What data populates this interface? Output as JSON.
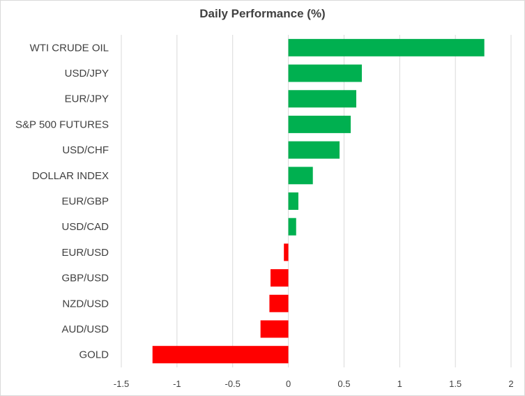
{
  "chart_data": {
    "type": "bar",
    "orientation": "horizontal",
    "title": "Daily Performance  (%)",
    "xlabel": "",
    "ylabel": "",
    "xlim": [
      -1.5,
      2
    ],
    "xticks": [
      "-1.5",
      "-1",
      "-0.5",
      "0",
      "0.5",
      "1",
      "1.5",
      "2"
    ],
    "xtick_values": [
      -1.5,
      -1,
      -0.5,
      0,
      0.5,
      1,
      1.5,
      2
    ],
    "grid": true,
    "legend": "none",
    "categories": [
      "WTI CRUDE OIL",
      "USD/JPY",
      "EUR/JPY",
      "S&P 500 FUTURES",
      "USD/CHF",
      "DOLLAR INDEX",
      "EUR/GBP",
      "USD/CAD",
      "EUR/USD",
      "GBP/USD",
      "NZD/USD",
      "AUD/USD",
      "GOLD"
    ],
    "values": [
      1.76,
      0.66,
      0.61,
      0.56,
      0.46,
      0.22,
      0.09,
      0.07,
      -0.04,
      -0.16,
      -0.17,
      -0.25,
      -1.22
    ],
    "colors": {
      "positive": "#00b050",
      "negative": "#ff0000",
      "grid": "#d9d9d9",
      "text": "#404040"
    }
  }
}
